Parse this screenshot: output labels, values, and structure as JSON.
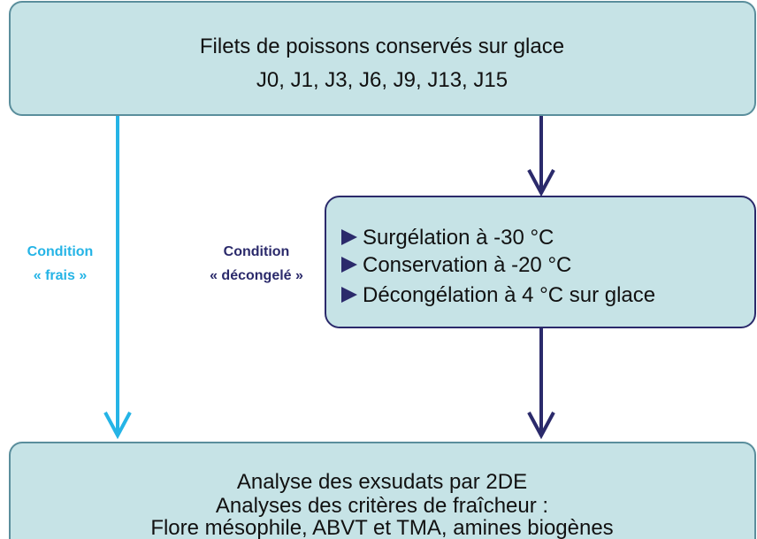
{
  "top_box": {
    "lines": [
      "Filets de poissons conservés sur glace",
      "J0, J1, J3, J6, J9, J13, J15"
    ]
  },
  "branches": [
    {
      "lines": [
        "Condition",
        "« frais »"
      ]
    },
    {
      "lines": [
        "Condition",
        "« décongelé »"
      ]
    }
  ],
  "process_box": {
    "steps": [
      "Surgélation à -30 °C",
      "Conservation à -20 °C",
      "Décongélation à 4 °C sur glace"
    ]
  },
  "bottom_box": {
    "lines": [
      "Analyse des exsudats par 2DE",
      "Analyses des critères de fraîcheur :",
      "Flore mésophile, ABVT et TMA, amines biogènes"
    ]
  }
}
